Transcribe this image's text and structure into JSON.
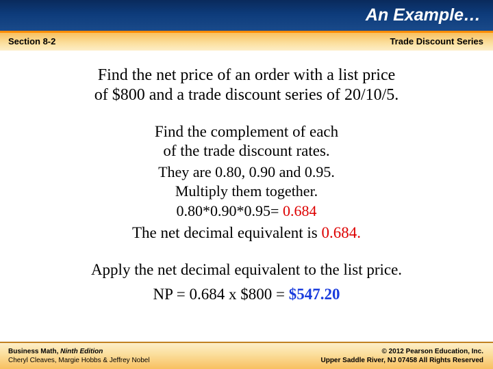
{
  "header": {
    "title": "An Example…",
    "section": "Section 8-2",
    "topic": "Trade Discount Series"
  },
  "content": {
    "problem_l1": "Find the net price of an order with a list price",
    "problem_l2": "of $800 and a trade discount series of 20/10/5.",
    "step1_l1": "Find the complement of each",
    "step1_l2": "of the trade discount rates.",
    "complements": "They are 0.80, 0.90 and 0.95.",
    "multiply": "Multiply them together.",
    "calc_prefix": "0.80*0.90*0.95= ",
    "calc_result": "0.684",
    "neteq_prefix": "The net decimal equivalent is ",
    "neteq_val": "0.684.",
    "apply": "Apply the net decimal equivalent to the list price.",
    "result_prefix": "NP = 0.684 x $800 = ",
    "result_val": "$547.20"
  },
  "footer": {
    "book_prefix": "Business Math, ",
    "book_edition": "Ninth Edition",
    "authors": "Cheryl Cleaves, Margie Hobbs & Jeffrey Nobel",
    "copyright": "© 2012 Pearson Education, Inc.",
    "address": "Upper Saddle River, NJ 07458  All Rights Reserved"
  },
  "colors": {
    "orange_border": "#ff8c00",
    "red_text": "#dd0000",
    "blue_text": "#1a3cdd"
  }
}
